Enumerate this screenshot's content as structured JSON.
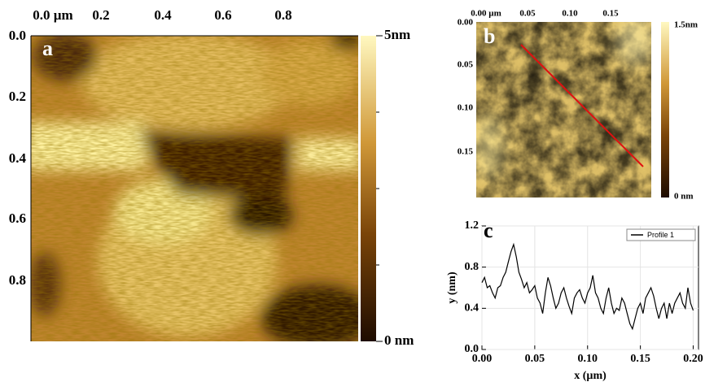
{
  "panel_a": {
    "label": "a",
    "x_ticks": [
      "0.0 µm",
      "0.2",
      "0.4",
      "0.6",
      "0.8"
    ],
    "y_ticks": [
      "0.0",
      "0.2",
      "0.4",
      "0.6",
      "0.8"
    ],
    "colorbar": {
      "max_label": "5nm",
      "min_label": "0 nm"
    }
  },
  "panel_b": {
    "label": "b",
    "x_ticks": [
      "0.00 µm",
      "0.05",
      "0.10",
      "0.15"
    ],
    "y_ticks": [
      "0.00",
      "0.05",
      "0.10",
      "0.15"
    ],
    "colorbar": {
      "max_label": "1.5nm",
      "min_label": "0 nm"
    }
  },
  "chart_data": {
    "type": "line",
    "label": "c",
    "x_label": "x (µm)",
    "y_label": "y (nm)",
    "x": [
      0,
      0.0025,
      0.005,
      0.0075,
      0.01,
      0.0125,
      0.015,
      0.0175,
      0.02,
      0.0225,
      0.025,
      0.0275,
      0.03,
      0.0325,
      0.035,
      0.0375,
      0.04,
      0.0425,
      0.045,
      0.0475,
      0.05,
      0.0525,
      0.055,
      0.0575,
      0.06,
      0.0625,
      0.065,
      0.0675,
      0.07,
      0.0725,
      0.075,
      0.0775,
      0.08,
      0.0825,
      0.085,
      0.0875,
      0.09,
      0.0925,
      0.095,
      0.0975,
      0.1,
      0.1025,
      0.105,
      0.1075,
      0.11,
      0.1125,
      0.115,
      0.1175,
      0.12,
      0.1225,
      0.125,
      0.1275,
      0.13,
      0.1325,
      0.135,
      0.1375,
      0.14,
      0.1425,
      0.145,
      0.1475,
      0.15,
      0.1525,
      0.155,
      0.1575,
      0.16,
      0.1625,
      0.165,
      0.1675,
      0.17,
      0.1725,
      0.175,
      0.1775,
      0.18,
      0.1825,
      0.185,
      0.1875,
      0.19,
      0.1925,
      0.195,
      0.1975,
      0.2
    ],
    "series": [
      {
        "name": "Profile 1",
        "color": "#000000",
        "values": [
          0.65,
          0.7,
          0.6,
          0.62,
          0.55,
          0.5,
          0.6,
          0.62,
          0.7,
          0.75,
          0.85,
          0.95,
          1.02,
          0.9,
          0.75,
          0.68,
          0.6,
          0.65,
          0.55,
          0.58,
          0.62,
          0.5,
          0.45,
          0.35,
          0.55,
          0.7,
          0.62,
          0.5,
          0.4,
          0.45,
          0.55,
          0.6,
          0.5,
          0.42,
          0.35,
          0.5,
          0.55,
          0.58,
          0.5,
          0.45,
          0.55,
          0.6,
          0.72,
          0.55,
          0.5,
          0.4,
          0.35,
          0.5,
          0.6,
          0.45,
          0.35,
          0.4,
          0.38,
          0.5,
          0.45,
          0.35,
          0.25,
          0.2,
          0.3,
          0.4,
          0.45,
          0.35,
          0.5,
          0.55,
          0.6,
          0.52,
          0.4,
          0.3,
          0.4,
          0.45,
          0.3,
          0.45,
          0.35,
          0.45,
          0.5,
          0.55,
          0.45,
          0.4,
          0.6,
          0.45,
          0.38
        ]
      }
    ],
    "xlim": [
      0,
      0.205
    ],
    "ylim": [
      0,
      1.2
    ],
    "xticks": [
      {
        "value": 0,
        "label": "0.00"
      },
      {
        "value": 0.05,
        "label": "0.05"
      },
      {
        "value": 0.1,
        "label": "0.10"
      },
      {
        "value": 0.15,
        "label": "0.15"
      },
      {
        "value": 0.2,
        "label": "0.20"
      }
    ],
    "yticks": [
      {
        "value": 0,
        "label": "0.0"
      },
      {
        "value": 0.4,
        "label": "0.4"
      },
      {
        "value": 0.8,
        "label": "0.8"
      },
      {
        "value": 1.2,
        "label": "1.2"
      }
    ],
    "grid": true,
    "legend": "upper right"
  }
}
